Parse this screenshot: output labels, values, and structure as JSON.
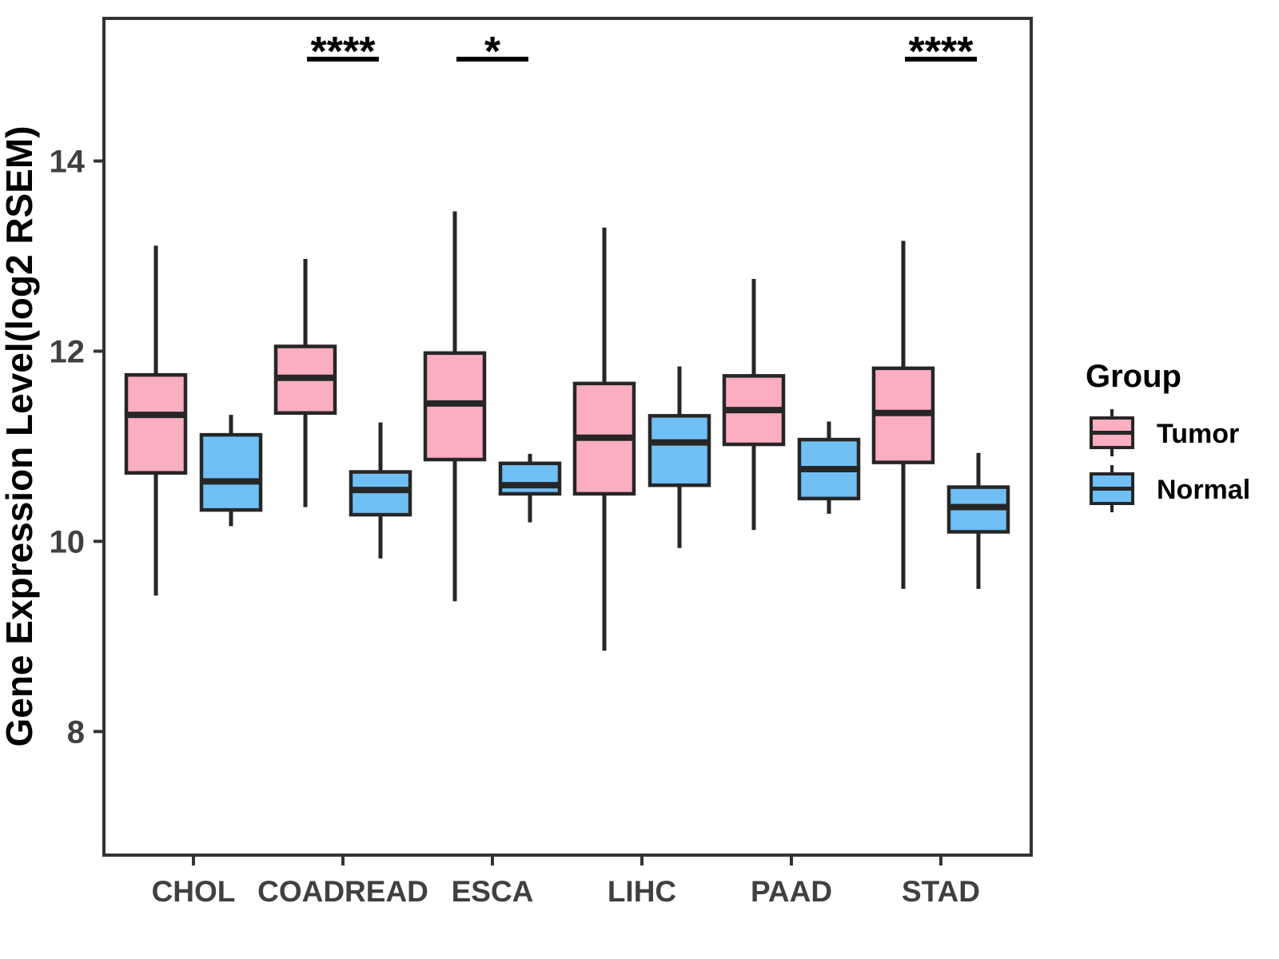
{
  "legend": {
    "title": "Group",
    "entries": [
      {
        "label": "Tumor",
        "color": "#FAAEC0"
      },
      {
        "label": "Normal",
        "color": "#70BFF4"
      }
    ]
  },
  "chart_data": {
    "type": "boxplot",
    "title": "",
    "xlabel": "",
    "ylabel": "Gene Expression Level(log2 RSEM)",
    "legend_position": "right",
    "grid": false,
    "categories": [
      "CHOL",
      "COADREAD",
      "ESCA",
      "LIHC",
      "PAAD",
      "STAD"
    ],
    "yticks": [
      8,
      10,
      12,
      14
    ],
    "ylim": [
      6.7,
      15.5
    ],
    "box_border_color": "#262626",
    "series": [
      {
        "name": "Tumor",
        "color": "#FAAEC0",
        "boxes": [
          {
            "category": "CHOL",
            "whisker_low": 9.43,
            "q1": 10.72,
            "median": 11.33,
            "q3": 11.75,
            "whisker_high": 13.11
          },
          {
            "category": "COADREAD",
            "whisker_low": 10.36,
            "q1": 11.35,
            "median": 11.72,
            "q3": 12.05,
            "whisker_high": 12.97
          },
          {
            "category": "ESCA",
            "whisker_low": 9.37,
            "q1": 10.86,
            "median": 11.45,
            "q3": 11.98,
            "whisker_high": 13.47
          },
          {
            "category": "LIHC",
            "whisker_low": 8.85,
            "q1": 10.5,
            "median": 11.09,
            "q3": 11.66,
            "whisker_high": 13.3
          },
          {
            "category": "PAAD",
            "whisker_low": 10.12,
            "q1": 11.02,
            "median": 11.38,
            "q3": 11.74,
            "whisker_high": 12.76
          },
          {
            "category": "STAD",
            "whisker_low": 9.5,
            "q1": 10.83,
            "median": 11.35,
            "q3": 11.82,
            "whisker_high": 13.16
          }
        ]
      },
      {
        "name": "Normal",
        "color": "#70BFF4",
        "boxes": [
          {
            "category": "CHOL",
            "whisker_low": 10.16,
            "q1": 10.33,
            "median": 10.63,
            "q3": 11.12,
            "whisker_high": 11.33
          },
          {
            "category": "COADREAD",
            "whisker_low": 9.82,
            "q1": 10.28,
            "median": 10.54,
            "q3": 10.73,
            "whisker_high": 11.25
          },
          {
            "category": "ESCA",
            "whisker_low": 10.2,
            "q1": 10.5,
            "median": 10.59,
            "q3": 10.82,
            "whisker_high": 10.92
          },
          {
            "category": "LIHC",
            "whisker_low": 9.93,
            "q1": 10.59,
            "median": 11.04,
            "q3": 11.32,
            "whisker_high": 11.84
          },
          {
            "category": "PAAD",
            "whisker_low": 10.29,
            "q1": 10.45,
            "median": 10.76,
            "q3": 11.07,
            "whisker_high": 11.26
          },
          {
            "category": "STAD",
            "whisker_low": 9.5,
            "q1": 10.1,
            "median": 10.36,
            "q3": 10.57,
            "whisker_high": 10.93
          }
        ]
      }
    ],
    "significance": [
      {
        "category": "COADREAD",
        "label": "****"
      },
      {
        "category": "ESCA",
        "label": "*"
      },
      {
        "category": "STAD",
        "label": "****"
      }
    ]
  }
}
